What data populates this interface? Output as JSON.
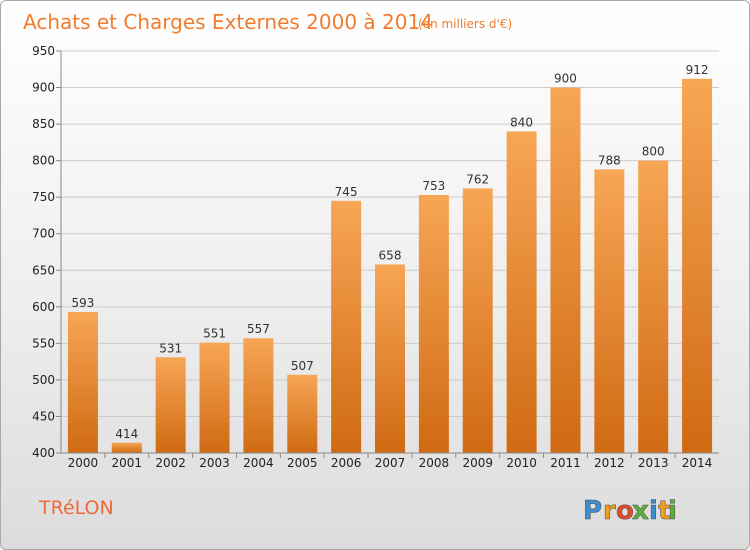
{
  "header": {
    "title": "Achats et Charges Externes 2000 à 2014",
    "subtitle": "(en milliers d'€)"
  },
  "footer": {
    "town": "TRéLON",
    "brand": {
      "letters": [
        "P",
        "r",
        "o",
        "x",
        "i",
        "t",
        "i"
      ],
      "colors": [
        "#3d8ed1",
        "#f49d1c",
        "#e4492a",
        "#59b23c",
        "#3d8ed1",
        "#f49d1c",
        "#59b23c"
      ]
    }
  },
  "colors": {
    "bar_top": "#f7a655",
    "bar_bottom": "#d06a13",
    "grid": "#cccccc",
    "accent": "#f07c2e"
  },
  "chart_data": {
    "type": "bar",
    "categories": [
      "2000",
      "2001",
      "2002",
      "2003",
      "2004",
      "2005",
      "2006",
      "2007",
      "2008",
      "2009",
      "2010",
      "2011",
      "2012",
      "2013",
      "2014"
    ],
    "values": [
      593,
      414,
      531,
      551,
      557,
      507,
      745,
      658,
      753,
      762,
      840,
      900,
      788,
      800,
      912
    ],
    "data_labels": [
      "593",
      "414",
      "531",
      "551",
      "557",
      "507",
      "745",
      "658",
      "753",
      "762",
      "840",
      "900",
      "788",
      "800",
      "912"
    ],
    "title": "Achats et Charges Externes 2000 à 2014",
    "subtitle": "(en milliers d'€)",
    "xlabel": "",
    "ylabel": "",
    "ylim": [
      400,
      950
    ],
    "yticks": [
      400,
      450,
      500,
      550,
      600,
      650,
      700,
      750,
      800,
      850,
      900,
      950
    ],
    "ytick_labels": [
      "400",
      "450",
      "500",
      "550",
      "600",
      "650",
      "700",
      "750",
      "800",
      "850",
      "900",
      "950"
    ],
    "grid": true
  }
}
